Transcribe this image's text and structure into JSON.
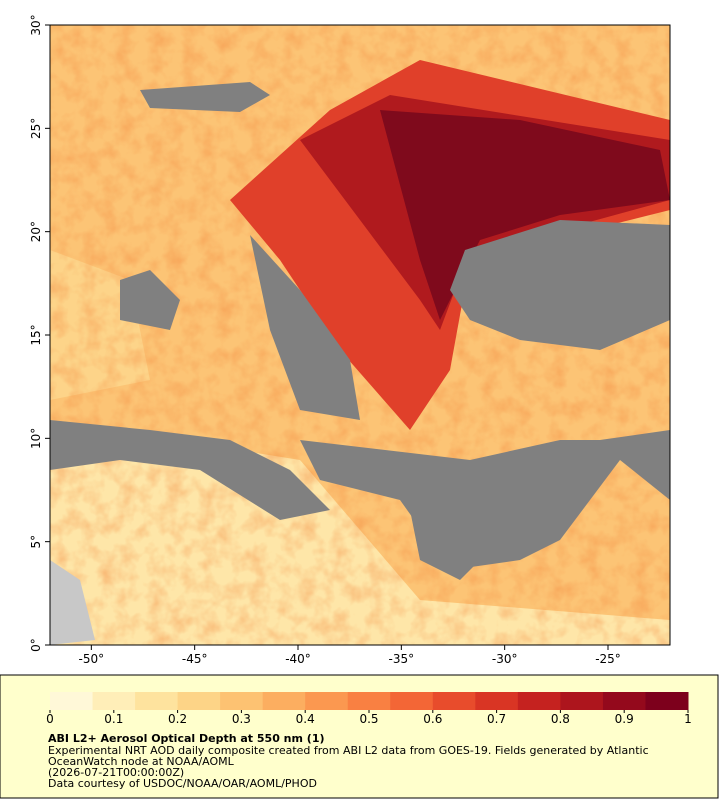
{
  "map": {
    "xlim": [
      -52,
      -22
    ],
    "ylim": [
      0,
      30
    ],
    "xticks": [
      {
        "value": -50,
        "label": "-50°"
      },
      {
        "value": -45,
        "label": "-45°"
      },
      {
        "value": -40,
        "label": "-40°"
      },
      {
        "value": -35,
        "label": "-35°"
      },
      {
        "value": -30,
        "label": "-30°"
      },
      {
        "value": -25,
        "label": "-25°"
      }
    ],
    "yticks": [
      {
        "value": 0,
        "label": "0°"
      },
      {
        "value": 5,
        "label": "5°"
      },
      {
        "value": 10,
        "label": "10°"
      },
      {
        "value": 15,
        "label": "15°"
      },
      {
        "value": 20,
        "label": "20°"
      },
      {
        "value": 25,
        "label": "25°"
      },
      {
        "value": 30,
        "label": "30°"
      }
    ]
  },
  "colorbar": {
    "lim": [
      0,
      1
    ],
    "ticks": [
      0,
      0.1,
      0.2,
      0.3,
      0.4,
      0.5,
      0.6,
      0.7,
      0.8,
      0.9,
      1
    ],
    "colors": [
      "#fff8d8",
      "#ffeeb8",
      "#fee39e",
      "#fdd487",
      "#fdc272",
      "#fcae60",
      "#fb9850",
      "#f98042",
      "#f36636",
      "#e84c2c",
      "#d93524",
      "#c5221f",
      "#ad151d",
      "#94091c",
      "#7d001c"
    ]
  },
  "caption": {
    "title": "ABI L2+ Aerosol Optical Depth at 550 nm (1)",
    "lines": [
      "Experimental NRT AOD daily composite created from ABI L2 data from GOES-19. Fields generated by Atlantic",
      "OceanWatch node at NOAA/AOML",
      "(2026-07-21T00:00:00Z)",
      "Data courtesy of USDOC/NOAA/OAR/AOML/PHOD"
    ]
  }
}
